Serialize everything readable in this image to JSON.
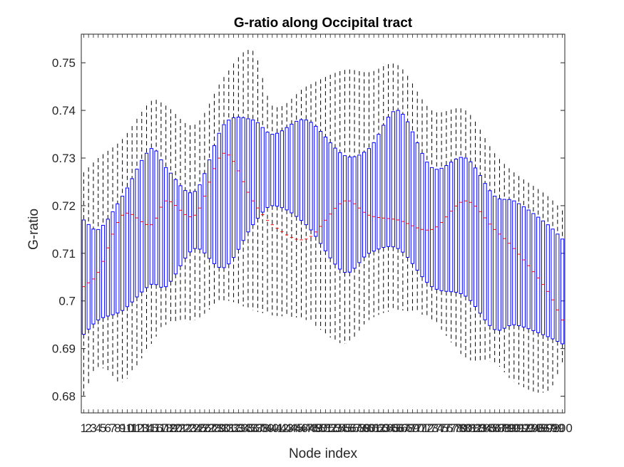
{
  "chart_data": {
    "type": "box",
    "title": "G-ratio along Occipital tract",
    "xlabel": "Node index",
    "ylabel": "G-ratio",
    "xlim": [
      0.5,
      100.5
    ],
    "ylim": [
      0.6765,
      0.756
    ],
    "yticks": [
      0.68,
      0.69,
      0.7,
      0.71,
      0.72,
      0.73,
      0.74,
      0.75
    ],
    "ytick_labels": [
      "0.68",
      "0.69",
      "0.7",
      "0.71",
      "0.72",
      "0.73",
      "0.74",
      "0.75"
    ],
    "box_color": "#0000ff",
    "median_color": "#ff0000",
    "whisker_color": "#000000",
    "grid": false,
    "n_nodes": 100,
    "control_nodes": [
      1,
      4,
      9,
      15,
      18,
      24,
      30,
      36,
      40,
      47,
      55,
      60,
      66,
      73,
      80,
      86,
      90,
      97,
      100
    ],
    "q1": [
      0.693,
      0.696,
      0.698,
      0.7035,
      0.703,
      0.711,
      0.707,
      0.716,
      0.72,
      0.716,
      0.706,
      0.71,
      0.711,
      0.703,
      0.701,
      0.694,
      0.695,
      0.6925,
      0.691
    ],
    "q3": [
      0.717,
      0.715,
      0.722,
      0.732,
      0.728,
      0.723,
      0.737,
      0.738,
      0.735,
      0.738,
      0.7305,
      0.732,
      0.74,
      0.728,
      0.73,
      0.722,
      0.721,
      0.716,
      0.713
    ],
    "median": [
      0.703,
      0.706,
      0.718,
      0.716,
      0.721,
      0.718,
      0.731,
      0.721,
      0.716,
      0.713,
      0.721,
      0.718,
      0.717,
      0.715,
      0.721,
      0.715,
      0.711,
      0.702,
      0.696
    ],
    "whislo": [
      0.68,
      0.686,
      0.683,
      0.691,
      0.695,
      0.696,
      0.7,
      0.698,
      0.697,
      0.696,
      0.691,
      0.696,
      0.698,
      0.696,
      0.688,
      0.687,
      0.683,
      0.681,
      0.687
    ],
    "whishi": [
      0.727,
      0.73,
      0.734,
      0.742,
      0.741,
      0.737,
      0.747,
      0.7525,
      0.741,
      0.745,
      0.7485,
      0.748,
      0.7495,
      0.74,
      0.74,
      0.731,
      0.727,
      0.722,
      0.719
    ]
  }
}
